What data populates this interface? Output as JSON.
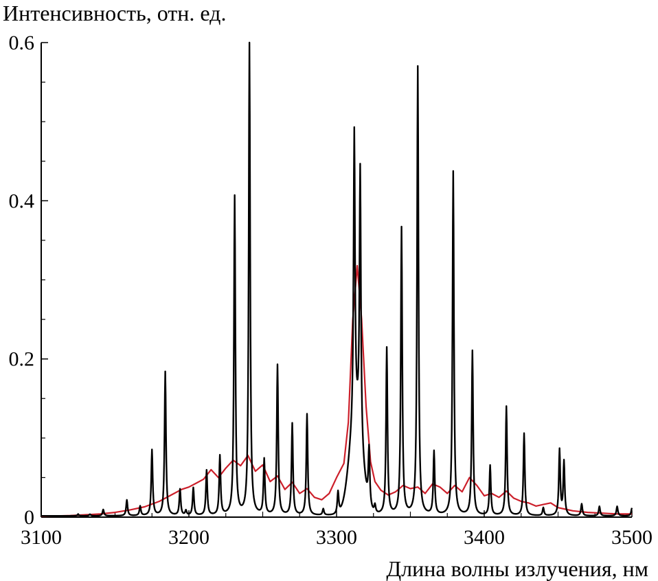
{
  "chart_data": {
    "type": "line",
    "title": "",
    "ylabel": "Интенсивность, отн. ед.",
    "xlabel": "Длина волны излучения, нм",
    "xlim": [
      3100,
      3500
    ],
    "ylim": [
      0,
      0.6
    ],
    "x_ticks": [
      3100,
      3200,
      3300,
      3400,
      3500
    ],
    "x_tick_labels": [
      "3100",
      "3200",
      "3300",
      "3400",
      "3500"
    ],
    "y_ticks": [
      0,
      0.2,
      0.4,
      0.6
    ],
    "y_tick_labels": [
      "0",
      "0.2",
      "0.4",
      "0.6"
    ],
    "grid": false,
    "legend": "none",
    "series": [
      {
        "color": "#000000",
        "kind": "line-spectrum",
        "peaks": [
          [
            3125,
            0.002
          ],
          [
            3133,
            0.002
          ],
          [
            3142,
            0.008
          ],
          [
            3158,
            0.02
          ],
          [
            3167,
            0.012
          ],
          [
            3175,
            0.083
          ],
          [
            3184,
            0.182
          ],
          [
            3194,
            0.033
          ],
          [
            3198,
            0.006
          ],
          [
            3203,
            0.035
          ],
          [
            3212,
            0.057
          ],
          [
            3221,
            0.075
          ],
          [
            3231,
            0.403
          ],
          [
            3241,
            0.6
          ],
          [
            3251,
            0.07
          ],
          [
            3260,
            0.19
          ],
          [
            3270,
            0.116
          ],
          [
            3280,
            0.128
          ],
          [
            3291,
            0.008
          ],
          [
            3301,
            0.028
          ],
          [
            3312,
            0.367
          ],
          [
            3316,
            0.343
          ],
          [
            3322,
            0.072
          ],
          [
            3326,
            0.01
          ],
          [
            3334,
            0.211
          ],
          [
            3344,
            0.363
          ],
          [
            3355,
            0.567
          ],
          [
            3366,
            0.08
          ],
          [
            3379,
            0.435
          ],
          [
            3392,
            0.208
          ],
          [
            3404,
            0.063
          ],
          [
            3415,
            0.138
          ],
          [
            3427,
            0.104
          ],
          [
            3440,
            0.01
          ],
          [
            3451,
            0.083
          ],
          [
            3454,
            0.068
          ],
          [
            3466,
            0.015
          ],
          [
            3478,
            0.012
          ],
          [
            3490,
            0.012
          ],
          [
            3500,
            0.01
          ]
        ],
        "broad_features": [
          [
            3313,
            0.12,
            6
          ]
        ]
      },
      {
        "color": "#cc1f2a",
        "kind": "envelope",
        "x": [
          3100,
          3120,
          3140,
          3150,
          3160,
          3170,
          3180,
          3190,
          3195,
          3200,
          3205,
          3210,
          3215,
          3220,
          3225,
          3230,
          3235,
          3240,
          3245,
          3250,
          3255,
          3260,
          3265,
          3270,
          3275,
          3280,
          3285,
          3290,
          3295,
          3300,
          3305,
          3308,
          3311,
          3314,
          3317,
          3320,
          3323,
          3326,
          3330,
          3335,
          3340,
          3345,
          3350,
          3355,
          3360,
          3365,
          3370,
          3375,
          3380,
          3385,
          3390,
          3395,
          3400,
          3405,
          3410,
          3415,
          3420,
          3425,
          3430,
          3435,
          3440,
          3445,
          3450,
          3455,
          3460,
          3470,
          3480,
          3490,
          3500
        ],
        "y": [
          0.001,
          0.002,
          0.004,
          0.006,
          0.009,
          0.013,
          0.02,
          0.03,
          0.035,
          0.038,
          0.043,
          0.048,
          0.06,
          0.05,
          0.062,
          0.072,
          0.065,
          0.078,
          0.058,
          0.066,
          0.045,
          0.052,
          0.035,
          0.044,
          0.03,
          0.036,
          0.025,
          0.022,
          0.03,
          0.05,
          0.068,
          0.12,
          0.25,
          0.318,
          0.25,
          0.14,
          0.07,
          0.045,
          0.034,
          0.028,
          0.032,
          0.04,
          0.036,
          0.038,
          0.03,
          0.042,
          0.038,
          0.03,
          0.04,
          0.032,
          0.05,
          0.04,
          0.027,
          0.03,
          0.025,
          0.033,
          0.024,
          0.02,
          0.018,
          0.014,
          0.016,
          0.018,
          0.012,
          0.01,
          0.008,
          0.006,
          0.005,
          0.004,
          0.004
        ]
      }
    ]
  }
}
